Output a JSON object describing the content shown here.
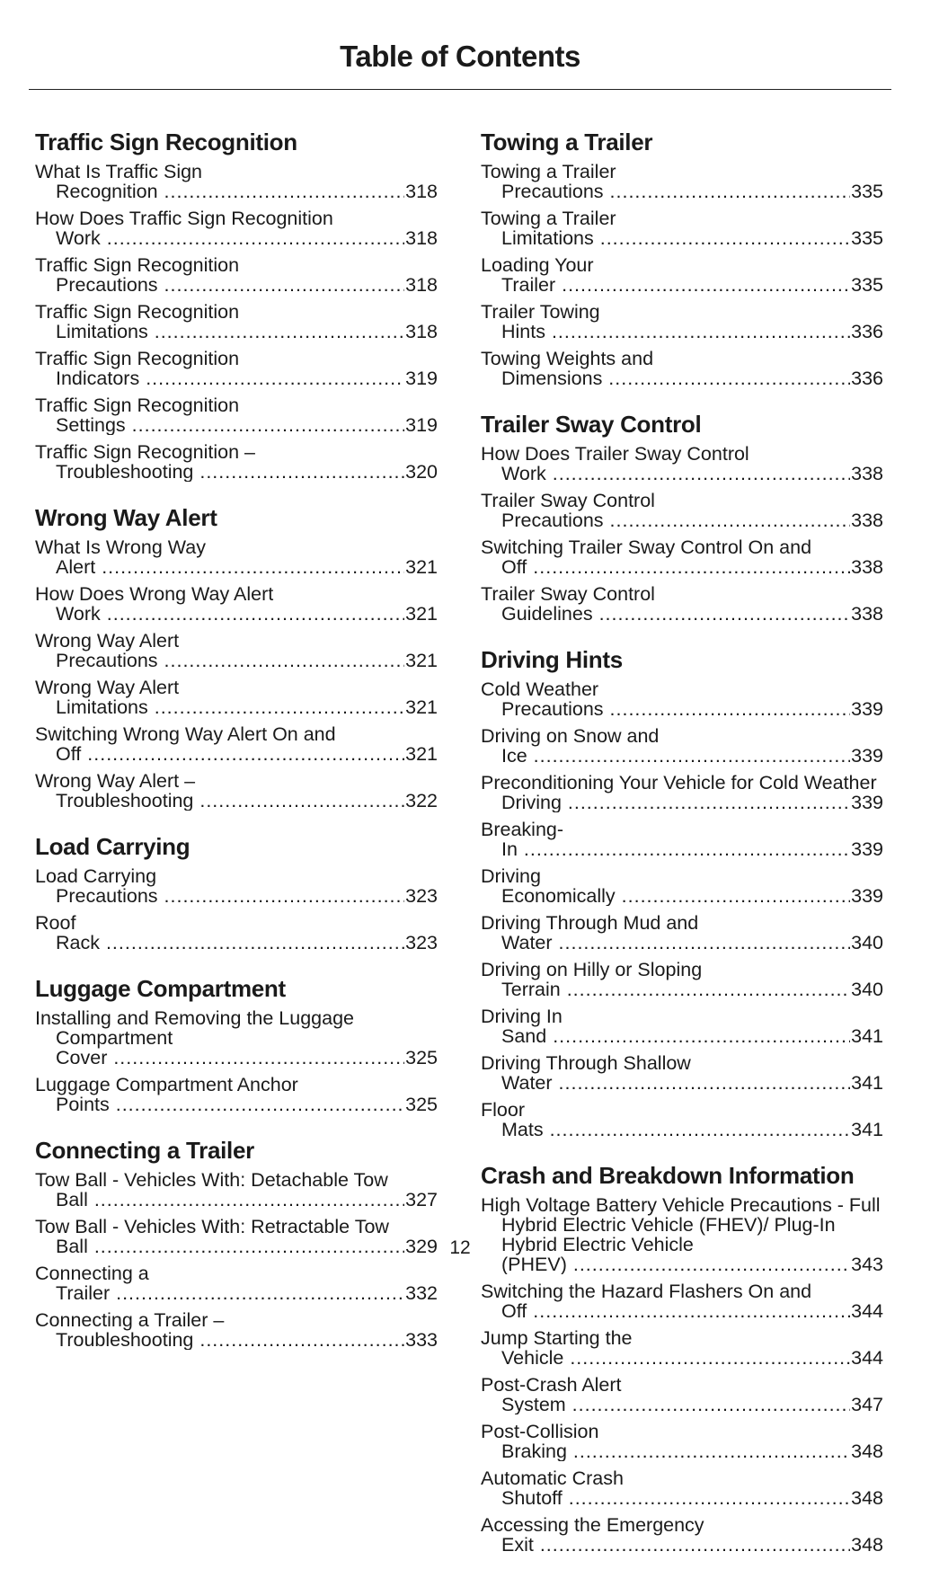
{
  "title": "Table of Contents",
  "page_number": "12",
  "left_column": [
    {
      "heading": "Traffic Sign Recognition",
      "entries": [
        {
          "title": "What Is Traffic Sign Recognition",
          "page": "318"
        },
        {
          "title": "How Does Traffic Sign Recognition Work",
          "page": "318"
        },
        {
          "title": "Traffic Sign Recognition Precautions",
          "page": "318"
        },
        {
          "title": "Traffic Sign Recognition Limitations",
          "page": "318"
        },
        {
          "title": "Traffic Sign Recognition Indicators",
          "page": "319"
        },
        {
          "title": "Traffic Sign Recognition Settings",
          "page": "319"
        },
        {
          "title": "Traffic Sign Recognition – Troubleshooting",
          "page": "320"
        }
      ]
    },
    {
      "heading": "Wrong Way Alert",
      "entries": [
        {
          "title": "What Is Wrong Way Alert",
          "page": "321"
        },
        {
          "title": "How Does Wrong Way Alert Work",
          "page": "321"
        },
        {
          "title": "Wrong Way Alert Precautions",
          "page": "321"
        },
        {
          "title": "Wrong Way Alert Limitations",
          "page": "321"
        },
        {
          "title": "Switching Wrong Way Alert On and Off",
          "page": "321"
        },
        {
          "title": "Wrong Way Alert – Troubleshooting",
          "page": "322"
        }
      ]
    },
    {
      "heading": "Load Carrying",
      "entries": [
        {
          "title": "Load Carrying Precautions",
          "page": "323"
        },
        {
          "title": "Roof Rack",
          "page": "323"
        }
      ]
    },
    {
      "heading": "Luggage Compartment",
      "entries": [
        {
          "title": "Installing and Removing the Luggage Compartment Cover",
          "page": "325"
        },
        {
          "title": "Luggage Compartment Anchor Points",
          "page": "325"
        }
      ]
    },
    {
      "heading": "Connecting a Trailer",
      "entries": [
        {
          "title": "Tow Ball - Vehicles With: Detachable Tow Ball",
          "page": "327"
        },
        {
          "title": "Tow Ball - Vehicles With: Retractable Tow Ball",
          "page": "329"
        },
        {
          "title": "Connecting a Trailer",
          "page": "332"
        },
        {
          "title": "Connecting a Trailer – Troubleshooting",
          "page": "333"
        }
      ]
    }
  ],
  "right_column": [
    {
      "heading": "Towing a Trailer",
      "entries": [
        {
          "title": "Towing a Trailer Precautions",
          "page": "335"
        },
        {
          "title": "Towing a Trailer Limitations",
          "page": "335"
        },
        {
          "title": "Loading Your Trailer",
          "page": "335"
        },
        {
          "title": "Trailer Towing Hints",
          "page": "336"
        },
        {
          "title": "Towing Weights and Dimensions",
          "page": "336"
        }
      ]
    },
    {
      "heading": "Trailer Sway Control",
      "entries": [
        {
          "title": "How Does Trailer Sway Control Work",
          "page": "338"
        },
        {
          "title": "Trailer Sway Control Precautions",
          "page": "338"
        },
        {
          "title": "Switching Trailer Sway Control On and Off",
          "page": "338"
        },
        {
          "title": "Trailer Sway Control Guidelines",
          "page": "338"
        }
      ]
    },
    {
      "heading": "Driving Hints",
      "entries": [
        {
          "title": "Cold Weather Precautions",
          "page": "339"
        },
        {
          "title": "Driving on Snow and Ice",
          "page": "339"
        },
        {
          "title": "Preconditioning Your Vehicle for Cold Weather Driving",
          "page": "339"
        },
        {
          "title": "Breaking-In",
          "page": "339"
        },
        {
          "title": "Driving Economically",
          "page": "339"
        },
        {
          "title": "Driving Through Mud and Water",
          "page": "340"
        },
        {
          "title": "Driving on Hilly or Sloping Terrain",
          "page": "340"
        },
        {
          "title": "Driving In Sand",
          "page": "341"
        },
        {
          "title": "Driving Through Shallow Water",
          "page": "341"
        },
        {
          "title": "Floor Mats",
          "page": "341"
        }
      ]
    },
    {
      "heading": "Crash and Breakdown Information",
      "entries": [
        {
          "title": "High Voltage Battery Vehicle Precautions - Full Hybrid Electric Vehicle (FHEV)/ Plug-In Hybrid Electric Vehicle (PHEV)",
          "page": "343"
        },
        {
          "title": "Switching the Hazard Flashers On and Off",
          "page": "344"
        },
        {
          "title": "Jump Starting the Vehicle",
          "page": "344"
        },
        {
          "title": "Post-Crash Alert System",
          "page": "347"
        },
        {
          "title": "Post-Collision Braking",
          "page": "348"
        },
        {
          "title": "Automatic Crash Shutoff",
          "page": "348"
        },
        {
          "title": "Accessing the Emergency Exit",
          "page": "348"
        }
      ]
    }
  ]
}
